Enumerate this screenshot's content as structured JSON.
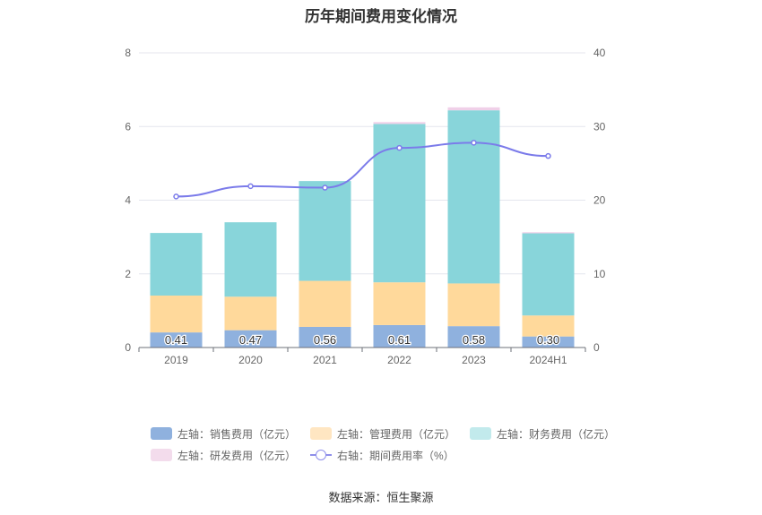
{
  "chart_data": {
    "type": "bar",
    "title": "历年期间费用变化情况",
    "categories": [
      "2019",
      "2020",
      "2021",
      "2022",
      "2023",
      "2024H1"
    ],
    "y_left": {
      "ylim": [
        0,
        8
      ],
      "ticks": [
        "0",
        "2",
        "4",
        "6",
        "8"
      ]
    },
    "y_right": {
      "ylim": [
        0,
        40
      ],
      "ticks": [
        "0",
        "10",
        "20",
        "30",
        "40"
      ]
    },
    "series": [
      {
        "name": "左轴：销售费用（亿元）",
        "type": "bar",
        "axis": "left",
        "color": "#8fb1de",
        "values": [
          0.41,
          0.47,
          0.56,
          0.61,
          0.58,
          0.3
        ],
        "labels": [
          "0.41",
          "0.47",
          "0.56",
          "0.61",
          "0.58",
          "0.30"
        ]
      },
      {
        "name": "左轴：管理费用（亿元）",
        "type": "bar",
        "axis": "left",
        "color": "#ffd99b",
        "values": [
          1.0,
          0.91,
          1.25,
          1.16,
          1.16,
          0.57
        ]
      },
      {
        "name": "左轴：财务费用（亿元）",
        "type": "bar",
        "axis": "left",
        "color": "#88d5da",
        "values": [
          1.7,
          2.02,
          2.71,
          4.3,
          4.7,
          2.23
        ]
      },
      {
        "name": "左轴：研发费用（亿元）",
        "type": "bar",
        "axis": "left",
        "color": "#f0d0e8",
        "values": [
          0.0,
          0.0,
          0.0,
          0.05,
          0.08,
          0.03
        ]
      },
      {
        "name": "右轴：期间费用率（%）",
        "type": "line",
        "axis": "right",
        "color": "#7b7bea",
        "values": [
          20.5,
          21.9,
          21.7,
          27.1,
          27.8,
          26.0
        ]
      }
    ],
    "grid": true,
    "legend_position": "bottom"
  },
  "source_text": "数据来源：恒生聚源"
}
